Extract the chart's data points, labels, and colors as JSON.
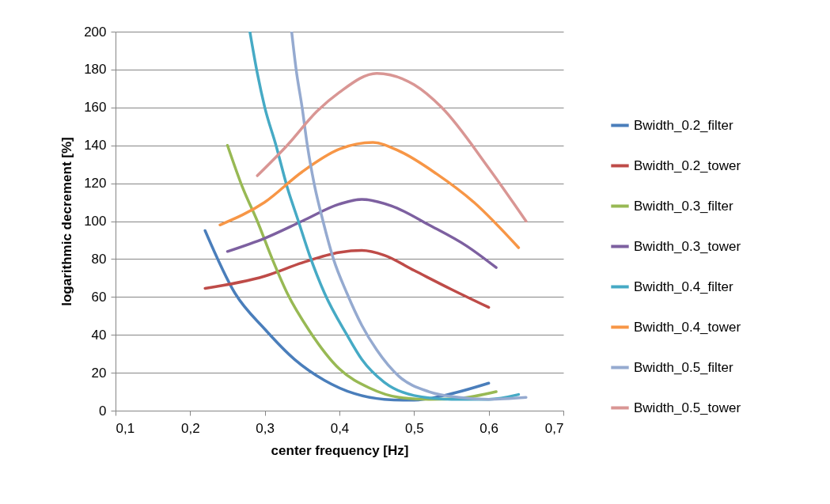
{
  "chart_data": {
    "type": "line",
    "xlabel": "center frequency [Hz]",
    "ylabel": "logarithmic decrement [%]",
    "xlim": [
      0.1,
      0.7
    ],
    "xticks": [
      {
        "value": 0.1,
        "label": "0,1"
      },
      {
        "value": 0.2,
        "label": "0,2"
      },
      {
        "value": 0.3,
        "label": "0,3"
      },
      {
        "value": 0.4,
        "label": "0,4"
      },
      {
        "value": 0.5,
        "label": "0,5"
      },
      {
        "value": 0.6,
        "label": "0,6"
      },
      {
        "value": 0.7,
        "label": "0,7"
      }
    ],
    "ylim": [
      0,
      200
    ],
    "yticks": [
      0,
      20,
      40,
      60,
      80,
      100,
      120,
      140,
      160,
      180,
      200
    ],
    "grid": "y",
    "legend": "right",
    "marker": "none",
    "line_style": "solid",
    "series": [
      {
        "name": "Bwidth_0.2_filter",
        "color": "#4a7ebb",
        "x": [
          0.22,
          0.26,
          0.3,
          0.34,
          0.38,
          0.42,
          0.46,
          0.5,
          0.54,
          0.6
        ],
        "values": [
          95,
          62,
          43,
          27,
          16,
          9,
          6,
          5.5,
          8,
          14.5
        ]
      },
      {
        "name": "Bwidth_0.2_tower",
        "color": "#be4b48",
        "x": [
          0.22,
          0.3,
          0.35,
          0.4,
          0.43,
          0.46,
          0.5,
          0.55,
          0.6
        ],
        "values": [
          64.5,
          71,
          78,
          83.5,
          84.5,
          82,
          74,
          64,
          54.5
        ]
      },
      {
        "name": "Bwidth_0.3_filter",
        "color": "#98b954",
        "x": [
          0.25,
          0.27,
          0.29,
          0.31,
          0.33,
          0.36,
          0.4,
          0.44,
          0.48,
          0.52,
          0.56,
          0.61
        ],
        "values": [
          140,
          118,
          100,
          80,
          62,
          42,
          22,
          12,
          7,
          6,
          6.5,
          10
        ]
      },
      {
        "name": "Bwidth_0.3_tower",
        "color": "#7d60a0",
        "x": [
          0.25,
          0.3,
          0.35,
          0.4,
          0.43,
          0.47,
          0.52,
          0.57,
          0.61
        ],
        "values": [
          84,
          91,
          100,
          109,
          111.5,
          108,
          98,
          87,
          75.5
        ]
      },
      {
        "name": "Bwidth_0.4_filter",
        "color": "#46aac5",
        "x": [
          0.28,
          0.29,
          0.3,
          0.315,
          0.33,
          0.345,
          0.36,
          0.38,
          0.41,
          0.43,
          0.46,
          0.5,
          0.55,
          0.6,
          0.64
        ],
        "values": [
          200,
          178,
          160,
          140,
          118,
          100,
          82,
          62,
          40,
          27,
          15,
          8,
          6,
          6,
          8.5
        ]
      },
      {
        "name": "Bwidth_0.4_tower",
        "color": "#f79646",
        "x": [
          0.24,
          0.3,
          0.35,
          0.4,
          0.445,
          0.48,
          0.53,
          0.58,
          0.64
        ],
        "values": [
          98,
          110,
          126,
          138,
          141.5,
          137,
          125,
          110,
          86
        ]
      },
      {
        "name": "Bwidth_0.5_filter",
        "color": "#95aad0",
        "x": [
          0.336,
          0.342,
          0.35,
          0.357,
          0.366,
          0.378,
          0.392,
          0.41,
          0.43,
          0.45,
          0.48,
          0.52,
          0.56,
          0.6,
          0.65
        ],
        "values": [
          200,
          180,
          160,
          140,
          120,
          100,
          80,
          62,
          45,
          32,
          18,
          10,
          7,
          6,
          7
        ]
      },
      {
        "name": "Bwidth_0.5_tower",
        "color": "#d99694",
        "x": [
          0.29,
          0.33,
          0.37,
          0.4,
          0.45,
          0.5,
          0.537,
          0.6,
          0.65
        ],
        "values": [
          124,
          140,
          158,
          168,
          178,
          172,
          160,
          128,
          100
        ]
      }
    ]
  }
}
